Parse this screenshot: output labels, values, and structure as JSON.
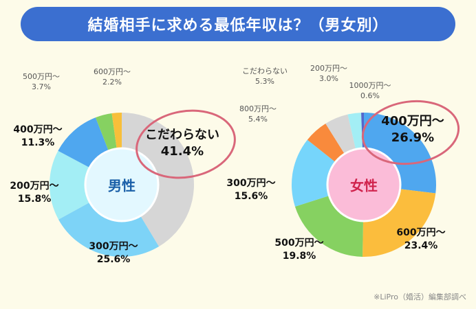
{
  "title": "結婚相手に求める最低年収は？（男女別）",
  "footer": "※LiPro（婚活）編集部調べ",
  "chart_data": [
    {
      "type": "pie",
      "donut": true,
      "center_label": "男性",
      "center_color": "#1a5fa8",
      "center_fill": "#e3f8ff",
      "highlighted": "こだわらない",
      "slices": [
        {
          "label": "こだわらない",
          "value": 41.4,
          "display": "41.4%",
          "color": "#d6d6d6"
        },
        {
          "label": "300万円～",
          "value": 25.6,
          "display": "25.6%",
          "color": "#7dd3f7"
        },
        {
          "label": "200万円～",
          "value": 15.8,
          "display": "15.8%",
          "color": "#a3eef5"
        },
        {
          "label": "400万円～",
          "value": 11.3,
          "display": "11.3%",
          "color": "#4fa7ef"
        },
        {
          "label": "500万円～",
          "value": 3.7,
          "display": "3.7%",
          "color": "#86d161"
        },
        {
          "label": "600万円～",
          "value": 2.2,
          "display": "2.2%",
          "color": "#f8bf3a"
        }
      ]
    },
    {
      "type": "pie",
      "donut": true,
      "center_label": "女性",
      "center_color": "#d0234d",
      "center_fill": "#fbbcd8",
      "highlighted": "400万円～",
      "slices": [
        {
          "label": "400万円～",
          "value": 26.9,
          "display": "26.9%",
          "color": "#4fa7ef"
        },
        {
          "label": "600万円～",
          "value": 23.4,
          "display": "23.4%",
          "color": "#fbbd3d"
        },
        {
          "label": "500万円～",
          "value": 19.8,
          "display": "19.8%",
          "color": "#86d161"
        },
        {
          "label": "300万円～",
          "value": 15.6,
          "display": "15.6%",
          "color": "#76d5fb"
        },
        {
          "label": "800万円～",
          "value": 5.4,
          "display": "5.4%",
          "color": "#f98a3c"
        },
        {
          "label": "こだわらない",
          "value": 5.3,
          "display": "5.3%",
          "color": "#d6d6d6"
        },
        {
          "label": "200万円～",
          "value": 3.0,
          "display": "3.0%",
          "color": "#a3eef5"
        },
        {
          "label": "1000万円～",
          "value": 0.6,
          "display": "0.6%",
          "color": "#5566cc"
        }
      ]
    }
  ]
}
